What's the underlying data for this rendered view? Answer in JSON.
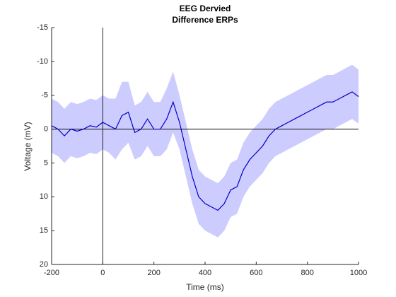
{
  "chart_data": {
    "type": "line",
    "title": "EEG Dervied",
    "subtitle": "Difference ERPs",
    "x_label": "Time (ms)",
    "y_label": "Voltage (mV)",
    "x": [
      -200,
      -175,
      -150,
      -125,
      -100,
      -75,
      -50,
      -25,
      0,
      25,
      50,
      75,
      100,
      125,
      150,
      175,
      200,
      225,
      250,
      275,
      300,
      325,
      350,
      375,
      400,
      425,
      450,
      475,
      500,
      525,
      550,
      575,
      600,
      625,
      650,
      675,
      700,
      725,
      750,
      775,
      800,
      825,
      850,
      875,
      900,
      925,
      950,
      975,
      1000
    ],
    "values": [
      -0.5,
      0,
      1,
      0,
      0.3,
      0,
      -0.5,
      -0.3,
      -1,
      -0.5,
      0,
      -2,
      -2.5,
      0.5,
      0,
      -1.5,
      0,
      0,
      -1.5,
      -4,
      -1,
      3,
      7,
      10,
      11,
      11.5,
      12,
      11,
      9,
      8.5,
      6,
      4.5,
      3.5,
      2.5,
      1,
      0,
      -0.5,
      -1,
      -1.5,
      -2,
      -2.5,
      -3,
      -3.5,
      -4,
      -4,
      -4.5,
      -5,
      -5.5,
      -4.8
    ],
    "band_low": [
      -4.5,
      -4,
      -3,
      -4,
      -3.7,
      -4,
      -4.5,
      -4.3,
      -5,
      -4.5,
      -4.5,
      -7,
      -7,
      -3.5,
      -4,
      -5.5,
      -4,
      -4,
      -6,
      -8.5,
      -5,
      -1,
      3,
      6,
      7,
      7.5,
      8,
      7,
      5,
      4.5,
      2,
      0.5,
      -0.5,
      -1.5,
      -3,
      -4,
      -4.5,
      -5,
      -5.5,
      -6,
      -6.5,
      -7,
      -7.5,
      -8,
      -8,
      -8.5,
      -9,
      -9.5,
      -8.8
    ],
    "band_high": [
      3.5,
      4,
      5,
      4,
      4.3,
      4,
      3.5,
      3.7,
      3,
      3.5,
      4.5,
      3,
      2,
      4.5,
      4,
      2.5,
      4,
      4,
      3,
      0.5,
      3,
      7,
      11,
      14,
      15,
      15.5,
      16,
      15,
      13,
      12.5,
      10,
      8.5,
      7.5,
      6.5,
      5,
      4,
      3.5,
      3,
      2.5,
      2,
      1.5,
      1,
      0.5,
      0,
      0,
      -0.5,
      -1,
      -1.5,
      -0.8
    ],
    "color": "#0000c8",
    "band_color": "#ccccff",
    "xlim": [
      -200,
      1000
    ],
    "xticks": [
      -200,
      0,
      200,
      400,
      600,
      800,
      1000
    ],
    "ylim": [
      -15,
      20
    ],
    "yticks": [
      -15,
      -10,
      -5,
      0,
      5,
      10,
      15,
      20
    ],
    "y_reversed": true,
    "reference_x": 0,
    "reference_y": 0
  }
}
